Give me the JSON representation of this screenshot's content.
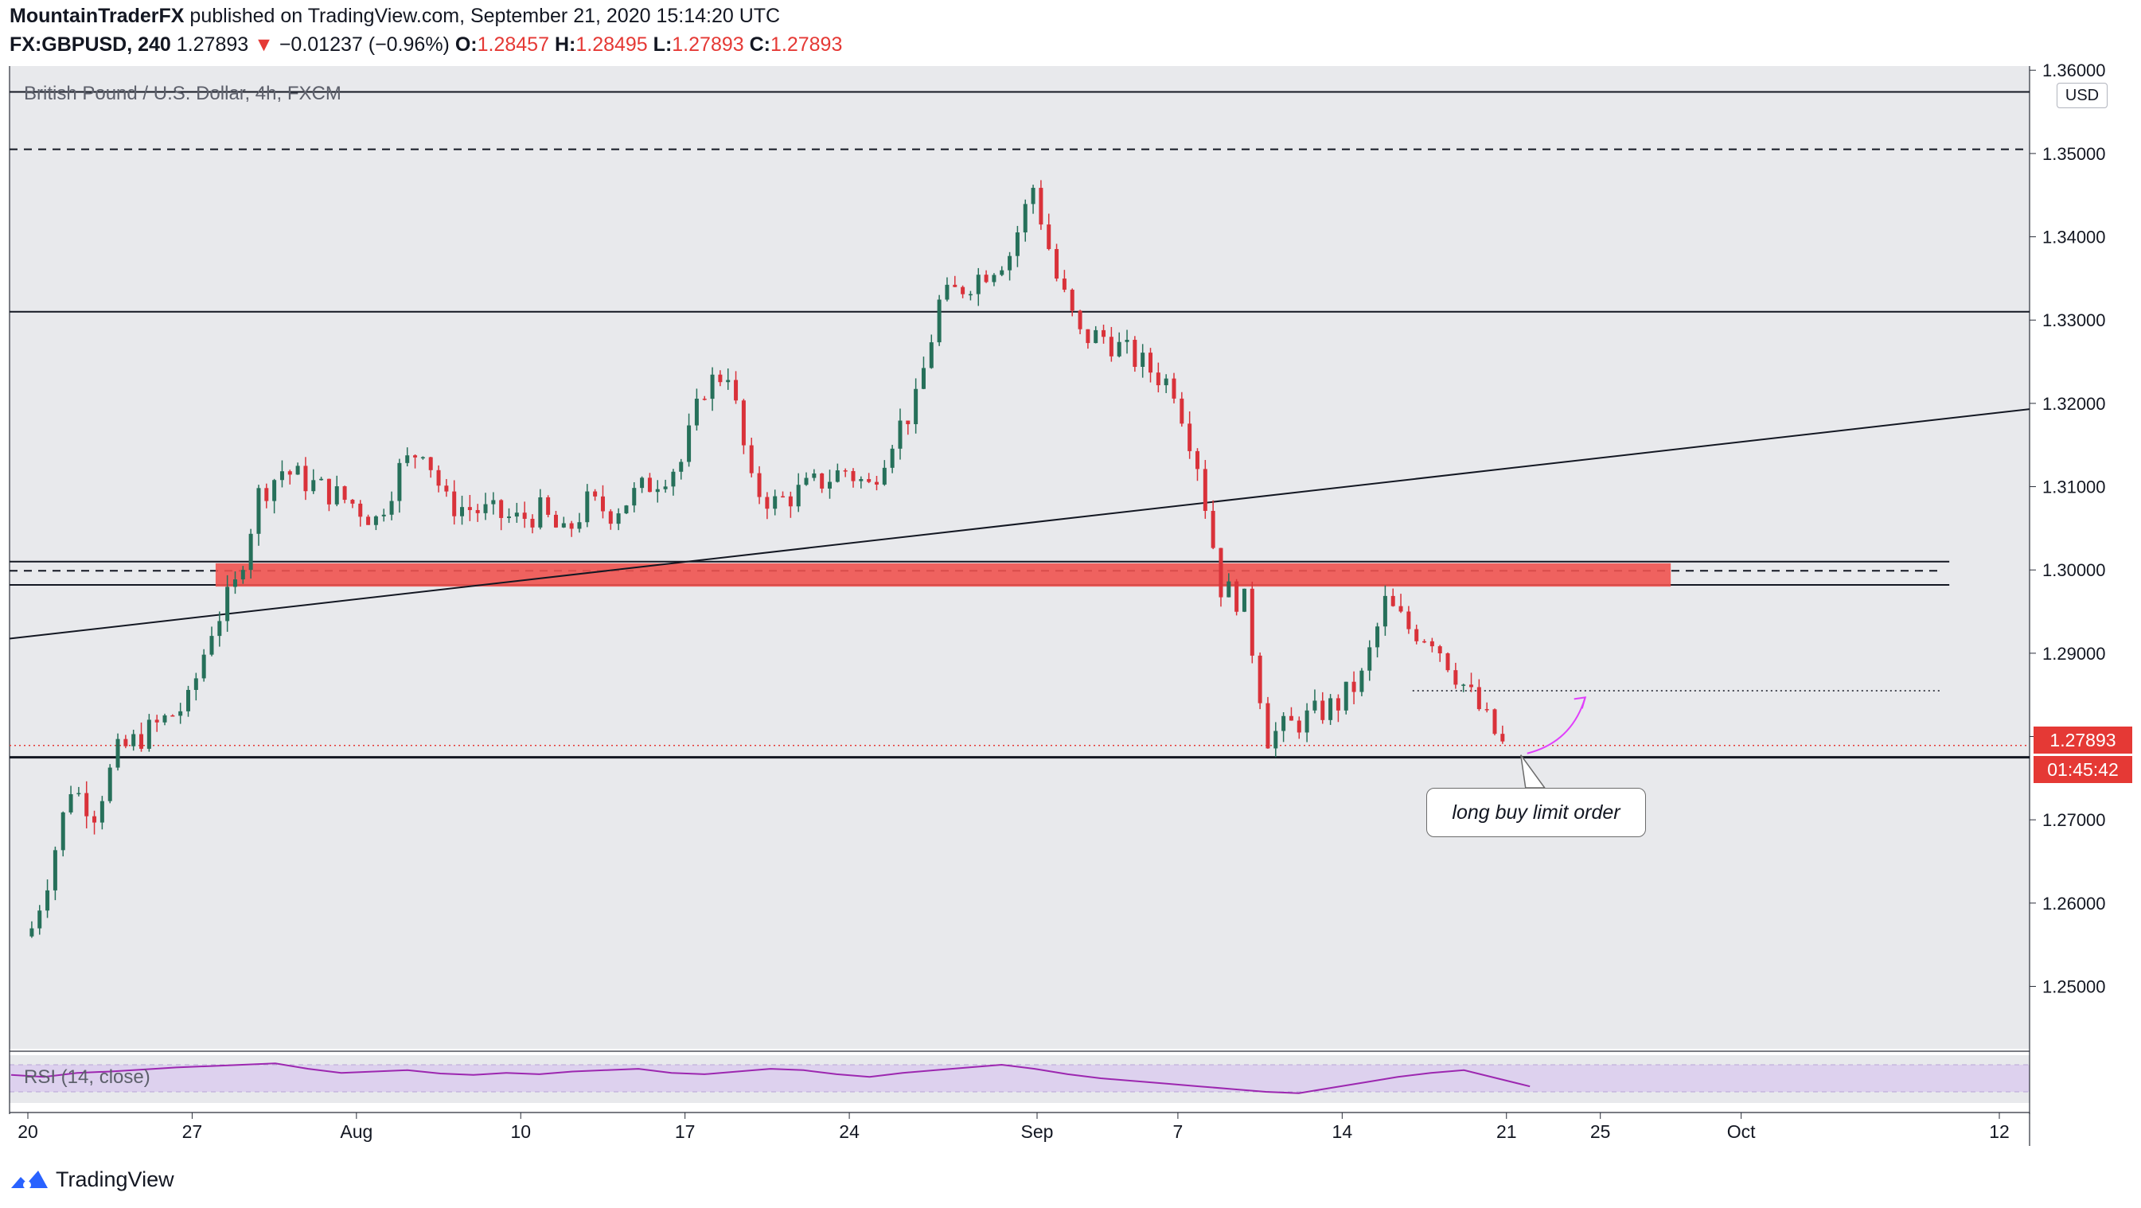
{
  "header": {
    "publisher": "MountainTraderFX",
    "published_text": "published on TradingView.com, September 21, 2020 15:14:20 UTC",
    "symbol": "FX:GBPUSD, 240",
    "last": "1.27893",
    "change_arrow": "▼",
    "change": "−0.01237 (−0.96%)",
    "o_label": "O:",
    "o_value": "1.28457",
    "h_label": "H:",
    "h_value": "1.28495",
    "l_label": "L:",
    "l_value": "1.27893",
    "c_label": "C:",
    "c_value": "1.27893"
  },
  "chart": {
    "symbol_label": "British Pound / U.S. Dollar, 4h, FXCM",
    "currency": "USD",
    "price_tag": "1.27893",
    "countdown_tag": "01:45:42",
    "annotation_text": "long buy limit order",
    "rsi_label": "RSI (14, close)"
  },
  "footer": {
    "brand": "TradingView",
    "logo_icon": "tradingview-logo-icon"
  },
  "colors": {
    "bull": "#26705a",
    "bear": "#d9323a",
    "zone": "#ef5350",
    "rsi": "#9c27b0",
    "rsi_band": "#e1d5f0",
    "tag": "#e53935",
    "arrow": "#e040fb"
  },
  "chart_data": {
    "type": "candlestick",
    "title": "British Pound / U.S. Dollar, 4h, FXCM",
    "currency": "USD",
    "ylim": [
      1.2425,
      1.3605
    ],
    "y_ticks": [
      "1.36000",
      "1.35000",
      "1.34000",
      "1.33000",
      "1.32000",
      "1.31000",
      "1.30000",
      "1.29000",
      "1.28000",
      "1.27000",
      "1.26000",
      "1.25000"
    ],
    "x_ticks": [
      "20",
      "27",
      "Aug",
      "10",
      "17",
      "24",
      "Sep",
      "7",
      "14",
      "21",
      "25",
      "Oct",
      "12"
    ],
    "x_tick_dates": [
      "2020-07-20",
      "2020-07-27",
      "2020-08-03",
      "2020-08-10",
      "2020-08-17",
      "2020-08-24",
      "2020-09-01",
      "2020-09-07",
      "2020-09-14",
      "2020-09-21",
      "2020-09-25",
      "2020-10-01",
      "2020-10-12"
    ],
    "close_path": [
      [
        "2020-07-20",
        1.254
      ],
      [
        "2020-07-21",
        1.263
      ],
      [
        "2020-07-22",
        1.274
      ],
      [
        "2020-07-23",
        1.271
      ],
      [
        "2020-07-24",
        1.278
      ],
      [
        "2020-07-27",
        1.284
      ],
      [
        "2020-07-28",
        1.293
      ],
      [
        "2020-07-29",
        1.298
      ],
      [
        "2020-07-30",
        1.309
      ],
      [
        "2020-07-31",
        1.312
      ],
      [
        "2020-08-03",
        1.308
      ],
      [
        "2020-08-04",
        1.306
      ],
      [
        "2020-08-05",
        1.312
      ],
      [
        "2020-08-06",
        1.315
      ],
      [
        "2020-08-07",
        1.308
      ],
      [
        "2020-08-10",
        1.306
      ],
      [
        "2020-08-11",
        1.307
      ],
      [
        "2020-08-12",
        1.304
      ],
      [
        "2020-08-13",
        1.308
      ],
      [
        "2020-08-14",
        1.307
      ],
      [
        "2020-08-17",
        1.313
      ],
      [
        "2020-08-18",
        1.322
      ],
      [
        "2020-08-19",
        1.324
      ],
      [
        "2020-08-20",
        1.31
      ],
      [
        "2020-08-21",
        1.308
      ],
      [
        "2020-08-24",
        1.312
      ],
      [
        "2020-08-25",
        1.31
      ],
      [
        "2020-08-26",
        1.316
      ],
      [
        "2020-08-27",
        1.32
      ],
      [
        "2020-08-28",
        1.332
      ],
      [
        "2020-08-31",
        1.338
      ],
      [
        "2020-09-01",
        1.346
      ],
      [
        "2020-09-02",
        1.335
      ],
      [
        "2020-09-03",
        1.328
      ],
      [
        "2020-09-04",
        1.328
      ],
      [
        "2020-09-07",
        1.322
      ],
      [
        "2020-09-08",
        1.313
      ],
      [
        "2020-09-09",
        1.298
      ],
      [
        "2020-09-10",
        1.296
      ],
      [
        "2020-09-11",
        1.28
      ],
      [
        "2020-09-14",
        1.284
      ],
      [
        "2020-09-15",
        1.287
      ],
      [
        "2020-09-16",
        1.296
      ],
      [
        "2020-09-17",
        1.293
      ],
      [
        "2020-09-18",
        1.292
      ],
      [
        "2020-09-21",
        1.27893
      ]
    ],
    "extremes": {
      "high": 1.34823,
      "low": 1.2515
    },
    "horizontal_levels": [
      1.3574,
      1.3505,
      1.331,
      1.301,
      1.2982,
      1.2775
    ],
    "dashed_levels": [
      1.3505,
      1.2999
    ],
    "dotted_levels": [
      1.2855
    ],
    "resistance_zone": [
      1.298,
      1.3008
    ],
    "trendline": [
      [
        "2020-07-20",
        1.292
      ],
      [
        "2020-10-12",
        1.3189
      ]
    ],
    "last_price_line": 1.27893,
    "rsi": {
      "period": 14,
      "source": "close",
      "band": [
        30,
        70
      ],
      "values": [
        55,
        52,
        58,
        60,
        63,
        66,
        68,
        70,
        72,
        64,
        58,
        60,
        62,
        57,
        55,
        58,
        56,
        60,
        62,
        64,
        58,
        56,
        60,
        64,
        62,
        56,
        52,
        58,
        62,
        66,
        70,
        64,
        56,
        50,
        46,
        42,
        38,
        34,
        30,
        28,
        36,
        44,
        52,
        58,
        62,
        50,
        38
      ]
    }
  }
}
